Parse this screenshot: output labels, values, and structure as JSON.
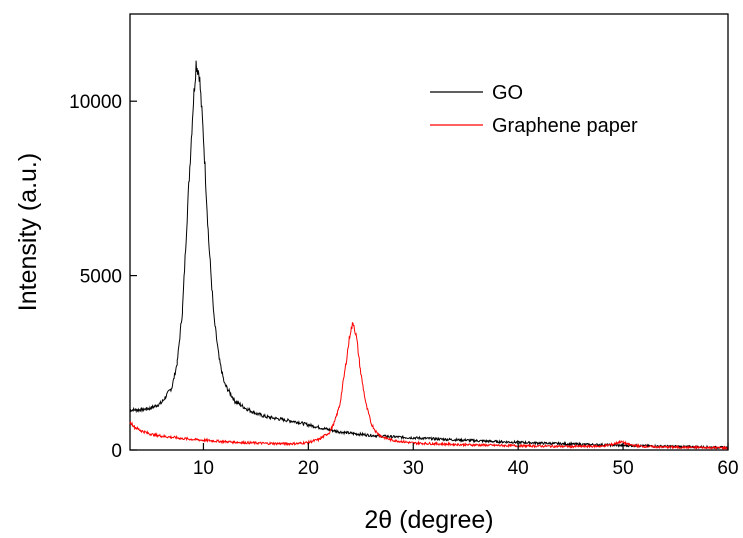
{
  "chart_data": {
    "type": "line",
    "title": "",
    "xlabel": "2θ (degree)",
    "ylabel": "Intensity (a.u.)",
    "xlim": [
      3,
      60
    ],
    "ylim": [
      0,
      12500
    ],
    "x_ticks": [
      10,
      20,
      30,
      40,
      50,
      60
    ],
    "y_ticks": [
      0,
      5000,
      10000
    ],
    "grid": false,
    "legend_position": "top-right",
    "series": [
      {
        "name": "GO",
        "color": "#000000",
        "x": [
          3,
          4,
          5,
          6,
          7,
          7.5,
          8,
          8.5,
          9,
          9.3,
          9.6,
          10,
          10.5,
          11,
          11.5,
          12,
          13,
          14,
          15,
          16,
          17,
          18,
          19,
          20,
          21,
          22,
          23,
          24,
          25,
          26,
          28,
          30,
          32,
          35,
          38,
          40,
          45,
          50,
          55,
          60
        ],
        "y": [
          1150,
          1150,
          1200,
          1350,
          1800,
          2500,
          4000,
          7000,
          9800,
          11100,
          10800,
          9000,
          6000,
          3800,
          2600,
          1900,
          1400,
          1200,
          1050,
          950,
          900,
          850,
          800,
          720,
          650,
          580,
          520,
          480,
          450,
          420,
          380,
          350,
          320,
          280,
          240,
          220,
          170,
          130,
          100,
          70
        ]
      },
      {
        "name": "Graphene paper",
        "color": "#ff0000",
        "x": [
          3,
          3.5,
          4,
          5,
          6,
          8,
          10,
          12,
          14,
          16,
          18,
          19,
          20,
          21,
          22,
          22.5,
          23,
          23.5,
          24,
          24.3,
          24.6,
          25,
          25.5,
          26,
          26.5,
          27,
          28,
          30,
          35,
          40,
          45,
          48,
          49,
          49.8,
          50.5,
          51.5,
          53,
          55,
          58,
          60
        ],
        "y": [
          800,
          650,
          560,
          450,
          400,
          330,
          280,
          240,
          210,
          190,
          180,
          185,
          220,
          300,
          500,
          800,
          1300,
          2300,
          3400,
          3650,
          3200,
          2200,
          1300,
          750,
          500,
          380,
          280,
          200,
          150,
          120,
          100,
          110,
          160,
          240,
          160,
          110,
          90,
          80,
          70,
          60
        ]
      }
    ]
  }
}
